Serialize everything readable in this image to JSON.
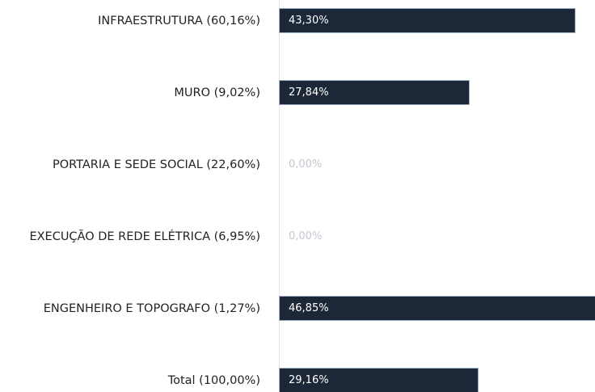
{
  "chart_data": {
    "type": "bar",
    "orientation": "horizontal",
    "categories": [
      "INFRAESTRUTURA (60,16%)",
      "MURO (9,02%)",
      "PORTARIA E SEDE SOCIAL (22,60%)",
      "EXECUÇÃO DE REDE ELÉTRICA (6,95%)",
      "ENGENHEIRO E TOPOGRAFO (1,27%)",
      "Total (100,00%)"
    ],
    "values": [
      43.3,
      27.84,
      0,
      0,
      46.85,
      29.16
    ],
    "value_labels": [
      "43,30%",
      "27,84%",
      "0,00%",
      "0,00%",
      "46,85%",
      "29,16%"
    ],
    "color": "#1c2838",
    "xlim": [
      0,
      46.1
    ]
  }
}
